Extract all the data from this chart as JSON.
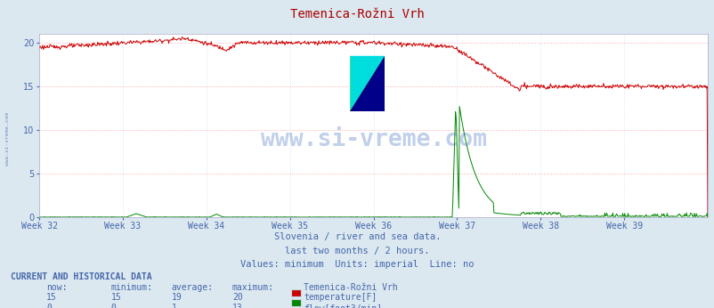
{
  "title": "Temenica-Rožni Vrh",
  "subtitle1": "Slovenia / river and sea data.",
  "subtitle2": "last two months / 2 hours.",
  "subtitle3": "Values: minimum  Units: imperial  Line: no",
  "bg_color": "#dce8f0",
  "plot_bg_color": "#ffffff",
  "text_color": "#4466aa",
  "title_color": "#aa0000",
  "ylim": [
    0,
    21
  ],
  "yticks": [
    0,
    5,
    10,
    15,
    20
  ],
  "week_labels": [
    "Week 32",
    "Week 33",
    "Week 34",
    "Week 35",
    "Week 36",
    "Week 37",
    "Week 38",
    "Week 39"
  ],
  "week_positions": [
    0.0,
    0.125,
    0.25,
    0.375,
    0.5,
    0.625,
    0.75,
    0.875
  ],
  "temp_color": "#cc0000",
  "flow_color": "#008800",
  "table_header": "CURRENT AND HISTORICAL DATA",
  "table_cols": [
    "now:",
    "minimum:",
    "average:",
    "maximum:",
    "Temenica-Rožni Vrh"
  ],
  "table_row1": [
    "15",
    "15",
    "19",
    "20",
    "temperature[F]"
  ],
  "table_row2": [
    "0",
    "0",
    "1",
    "13",
    "flow[foot3/min]"
  ],
  "watermark": "www.si-vreme.com",
  "n_points": 1008
}
